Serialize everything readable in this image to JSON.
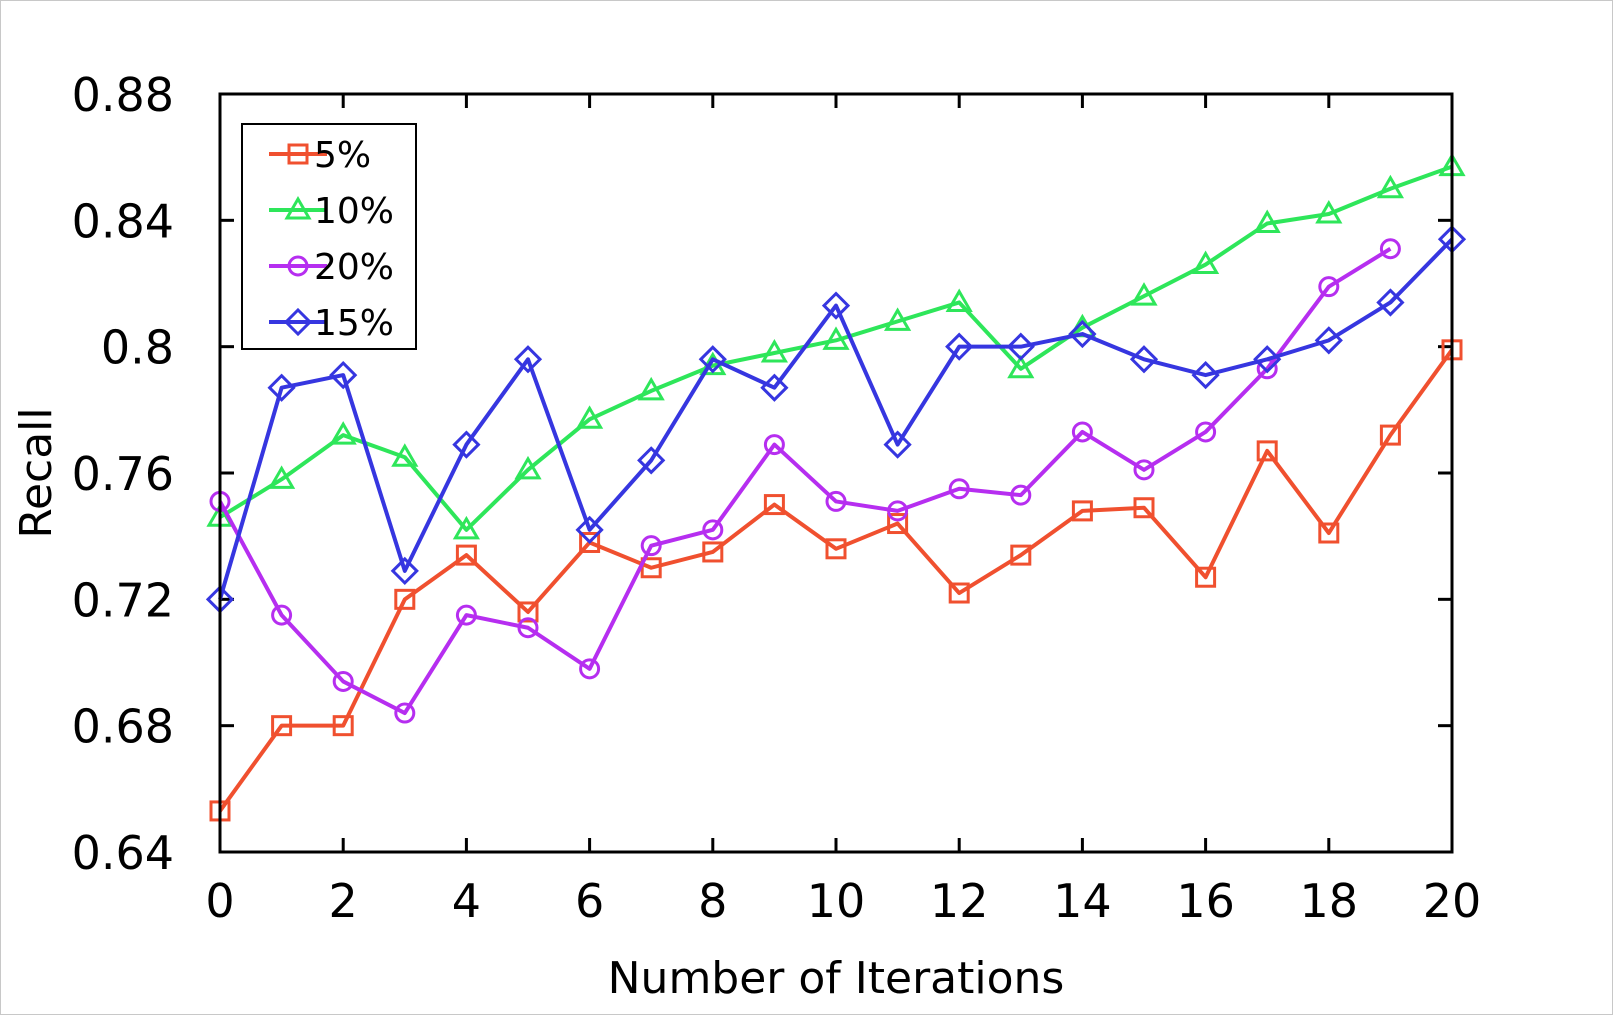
{
  "chart_data": {
    "type": "line",
    "xlabel": "Number of Iterations",
    "ylabel": "Recall",
    "xlim": [
      0,
      20
    ],
    "ylim": [
      0.64,
      0.88
    ],
    "x_ticks": [
      0,
      2,
      4,
      6,
      8,
      10,
      12,
      14,
      16,
      18,
      20
    ],
    "x_tick_labels": [
      "0",
      "2",
      "4",
      "6",
      "8",
      "10",
      "12",
      "14",
      "16",
      "18",
      "20"
    ],
    "y_ticks": [
      0.64,
      0.68,
      0.72,
      0.76,
      0.8,
      0.84,
      0.88
    ],
    "y_tick_labels": [
      "0.64",
      "0.68",
      "0.72",
      "0.76",
      "0.8",
      "0.84",
      "0.88"
    ],
    "grid": false,
    "legend_position": "top-left",
    "series": [
      {
        "name": "5%",
        "color": "#f0502f",
        "marker": "square",
        "x": [
          0,
          1,
          2,
          3,
          4,
          5,
          6,
          7,
          8,
          9,
          10,
          11,
          12,
          13,
          14,
          15,
          16,
          17,
          18,
          19,
          20
        ],
        "values": [
          0.653,
          0.68,
          0.68,
          0.72,
          0.734,
          0.716,
          0.738,
          0.73,
          0.735,
          0.75,
          0.736,
          0.744,
          0.722,
          0.734,
          0.748,
          0.749,
          0.727,
          0.767,
          0.741,
          0.772,
          0.799
        ]
      },
      {
        "name": "10%",
        "color": "#2ee65a",
        "marker": "triangle",
        "x": [
          0,
          1,
          2,
          3,
          4,
          5,
          6,
          7,
          8,
          9,
          10,
          11,
          12,
          13,
          14,
          15,
          16,
          17,
          18,
          19,
          20
        ],
        "values": [
          0.746,
          0.758,
          0.772,
          0.765,
          0.742,
          0.761,
          0.777,
          0.786,
          0.794,
          0.798,
          0.802,
          0.808,
          0.814,
          0.793,
          0.806,
          0.816,
          0.826,
          0.839,
          0.842,
          0.85,
          0.857
        ]
      },
      {
        "name": "20%",
        "color": "#b62ef0",
        "marker": "circle",
        "x": [
          0,
          1,
          2,
          3,
          4,
          5,
          6,
          7,
          8,
          9,
          10,
          11,
          12,
          13,
          14,
          15,
          16,
          17,
          18,
          19
        ],
        "values": [
          0.751,
          0.715,
          0.694,
          0.684,
          0.715,
          0.711,
          0.698,
          0.737,
          0.742,
          0.769,
          0.751,
          0.748,
          0.755,
          0.753,
          0.773,
          0.761,
          0.773,
          0.793,
          0.819,
          0.831
        ]
      },
      {
        "name": "15%",
        "color": "#3636e0",
        "marker": "diamond",
        "x": [
          0,
          1,
          2,
          3,
          4,
          5,
          6,
          7,
          8,
          9,
          10,
          11,
          12,
          13,
          14,
          15,
          16,
          17,
          18,
          19,
          20
        ],
        "values": [
          0.72,
          0.787,
          0.791,
          0.729,
          0.769,
          0.796,
          0.742,
          0.764,
          0.796,
          0.787,
          0.813,
          0.769,
          0.8,
          0.8,
          0.804,
          0.796,
          0.791,
          0.796,
          0.802,
          0.814,
          0.834
        ]
      }
    ]
  }
}
